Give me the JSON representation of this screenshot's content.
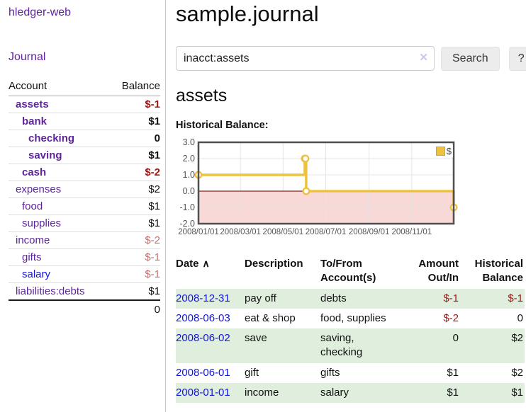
{
  "palette": {
    "link_purple": "#5f249e",
    "link_blue": "#1414dd",
    "negative_strong": "#9c1717",
    "negative_muted": "#c46f6f",
    "row_stripe_green": "#dfeedd",
    "chart_gold": "#edc240",
    "chart_negative_fill": "#f9d8d8",
    "chart_zero_line": "#8f1d1d",
    "button_bg": "#ececec"
  },
  "sidebar": {
    "app_title": "hledger-web",
    "journal_link": "Journal",
    "accounts_table": {
      "headers": [
        "Account",
        "Balance"
      ],
      "rows": [
        {
          "name": "assets",
          "depth": 1,
          "bold": true,
          "balance": "$-1",
          "tone": "neg-strong",
          "link_tone": "visited"
        },
        {
          "name": "bank",
          "depth": 2,
          "bold": true,
          "balance": "$1",
          "tone": "",
          "link_tone": "visited"
        },
        {
          "name": "checking",
          "depth": 3,
          "bold": true,
          "balance": "0",
          "tone": "",
          "link_tone": "visited"
        },
        {
          "name": "saving",
          "depth": 3,
          "bold": true,
          "balance": "$1",
          "tone": "",
          "link_tone": "visited"
        },
        {
          "name": "cash",
          "depth": 2,
          "bold": true,
          "balance": "$-2",
          "tone": "neg-strong",
          "link_tone": "visited"
        },
        {
          "name": "expenses",
          "depth": 1,
          "bold": false,
          "balance": "$2",
          "tone": "",
          "link_tone": "visited"
        },
        {
          "name": "food",
          "depth": 2,
          "bold": false,
          "balance": "$1",
          "tone": "",
          "link_tone": "visited"
        },
        {
          "name": "supplies",
          "depth": 2,
          "bold": false,
          "balance": "$1",
          "tone": "",
          "link_tone": "visited"
        },
        {
          "name": "income",
          "depth": 1,
          "bold": false,
          "balance": "$-2",
          "tone": "neg-muted",
          "link_tone": "visited"
        },
        {
          "name": "gifts",
          "depth": 2,
          "bold": false,
          "balance": "$-1",
          "tone": "neg-muted",
          "link_tone": "visited"
        },
        {
          "name": "salary",
          "depth": 2,
          "bold": false,
          "balance": "$-1",
          "tone": "neg-muted",
          "link_tone": "unvisited"
        },
        {
          "name": "liabilities:debts",
          "depth": 1,
          "bold": false,
          "balance": "$1",
          "tone": "",
          "link_tone": "visited"
        }
      ],
      "total": "0"
    }
  },
  "main": {
    "title": "sample.journal",
    "search": {
      "value": "inacct:assets",
      "clear_icon": "✕",
      "search_button_label": "Search",
      "help_button_label": "?"
    },
    "account_heading": "assets",
    "chart_label": "Historical Balance:"
  },
  "chart_data": {
    "type": "line",
    "step": true,
    "title": "Historical Balance:",
    "series": [
      {
        "name": "$",
        "color": "#edc240",
        "points": [
          [
            "2008-01-01",
            1
          ],
          [
            "2008-06-01",
            2
          ],
          [
            "2008-06-02",
            2
          ],
          [
            "2008-06-03",
            0
          ],
          [
            "2008-12-31",
            -1
          ]
        ]
      }
    ],
    "x_range": [
      "2008-01-01",
      "2008-12-31"
    ],
    "ylim": [
      -2,
      3
    ],
    "x_ticks": [
      "2008/01/01",
      "2008/03/01",
      "2008/05/01",
      "2008/07/01",
      "2008/09/01",
      "2008/11/01"
    ],
    "y_ticks": [
      "3.0",
      "2.0",
      "1.0",
      "0.0",
      "-1.0",
      "-2.0"
    ],
    "grid": true,
    "legend_position": "top-right",
    "negative_region_fill": "#f9d8d8",
    "zero_line_color": "#8f1d1d"
  },
  "register": {
    "headers": {
      "date": "Date",
      "description": "Description",
      "accounts": "To/From Account(s)",
      "amount": "Amount Out/In",
      "balance": "Historical Balance"
    },
    "sort_icon": "∧",
    "rows": [
      {
        "date": "2008-12-31",
        "description": "pay off",
        "accounts": "debts",
        "amount": "$-1",
        "balance": "$-1"
      },
      {
        "date": "2008-06-03",
        "description": "eat & shop",
        "accounts": "food, supplies",
        "amount": "$-2",
        "balance": "0"
      },
      {
        "date": "2008-06-02",
        "description": "save",
        "accounts": "saving, checking",
        "amount": "0",
        "balance": "$2"
      },
      {
        "date": "2008-06-01",
        "description": "gift",
        "accounts": "gifts",
        "amount": "$1",
        "balance": "$2"
      },
      {
        "date": "2008-01-01",
        "description": "income",
        "accounts": "salary",
        "amount": "$1",
        "balance": "$1"
      }
    ]
  }
}
